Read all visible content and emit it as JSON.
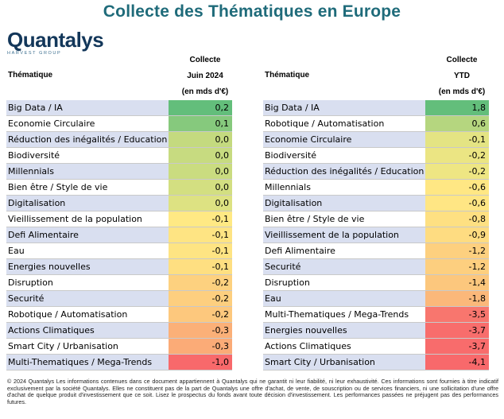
{
  "title": "Collecte des Thématiques en Europe",
  "logo": {
    "name": "Quantalys",
    "subtitle": "HARVEST GROUP"
  },
  "left": {
    "theme_header": "Thématique",
    "value_header_lines": [
      "Collecte",
      "Juin 2024",
      "(en mds d'€)"
    ],
    "rows": [
      {
        "name": "Big Data / IA",
        "value": "0,2",
        "color": "#63be7b"
      },
      {
        "name": "Economie Circulaire",
        "value": "0,1",
        "color": "#86c97d"
      },
      {
        "name": "Réduction des inégalités / Education",
        "value": "0,0",
        "color": "#c4da7f"
      },
      {
        "name": "Biodiversité",
        "value": "0,0",
        "color": "#c7db80"
      },
      {
        "name": "Millennials",
        "value": "0,0",
        "color": "#cadc80"
      },
      {
        "name": "Bien être / Style de vie",
        "value": "0,0",
        "color": "#d3df81"
      },
      {
        "name": "Digitalisation",
        "value": "0,0",
        "color": "#dde282"
      },
      {
        "name": "Vieillissement de la population",
        "value": "-0,1",
        "color": "#ffe984"
      },
      {
        "name": "Defi Alimentaire",
        "value": "-0,1",
        "color": "#fee483"
      },
      {
        "name": "Eau",
        "value": "-0,1",
        "color": "#fee483"
      },
      {
        "name": "Energies nouvelles",
        "value": "-0,1",
        "color": "#fedf81"
      },
      {
        "name": "Disruption",
        "value": "-0,2",
        "color": "#fdd17f"
      },
      {
        "name": "Securité",
        "value": "-0,2",
        "color": "#fdcf7f"
      },
      {
        "name": "Robotique / Automatisation",
        "value": "-0,2",
        "color": "#fdc87d"
      },
      {
        "name": "Actions Climatiques",
        "value": "-0,3",
        "color": "#fbb078"
      },
      {
        "name": "Smart City / Urbanisation",
        "value": "-0,3",
        "color": "#fbab77"
      },
      {
        "name": "Multi-Thematiques / Mega-Trends",
        "value": "-1,0",
        "color": "#f8696b"
      }
    ]
  },
  "right": {
    "theme_header": "Thématique",
    "value_header_lines": [
      "Collecte",
      "YTD",
      "(en mds d'€)"
    ],
    "rows": [
      {
        "name": "Big Data / IA",
        "value": "1,8",
        "color": "#63be7b"
      },
      {
        "name": "Robotique / Automatisation",
        "value": "0,6",
        "color": "#b5d67f"
      },
      {
        "name": "Economie Circulaire",
        "value": "-0,1",
        "color": "#e4e483"
      },
      {
        "name": "Biodiversité",
        "value": "-0,2",
        "color": "#ebe583"
      },
      {
        "name": "Réduction des inégalités / Education",
        "value": "-0,2",
        "color": "#eee683"
      },
      {
        "name": "Millennials",
        "value": "-0,6",
        "color": "#ffe784"
      },
      {
        "name": "Digitalisation",
        "value": "-0,6",
        "color": "#ffe684"
      },
      {
        "name": "Bien être / Style de vie",
        "value": "-0,8",
        "color": "#fee082"
      },
      {
        "name": "Vieillissement de la population",
        "value": "-0,9",
        "color": "#fedc81"
      },
      {
        "name": "Defi Alimentaire",
        "value": "-1,2",
        "color": "#fdd07f"
      },
      {
        "name": "Securité",
        "value": "-1,2",
        "color": "#fdcf7f"
      },
      {
        "name": "Disruption",
        "value": "-1,4",
        "color": "#fcc77d"
      },
      {
        "name": "Eau",
        "value": "-1,8",
        "color": "#fbb87a"
      },
      {
        "name": "Multi-Thematiques / Mega-Trends",
        "value": "-3,5",
        "color": "#f8766e"
      },
      {
        "name": "Energies nouvelles",
        "value": "-3,7",
        "color": "#f86d6c"
      },
      {
        "name": "Actions Climatiques",
        "value": "-3,7",
        "color": "#f86c6c"
      },
      {
        "name": "Smart City / Urbanisation",
        "value": "-4,1",
        "color": "#f8696b"
      }
    ]
  },
  "chart_data": [
    {
      "type": "table",
      "columns": [
        "Thématique",
        "Collecte Juin 2024 (en mds d'€)"
      ],
      "categories": [
        "Big Data / IA",
        "Economie Circulaire",
        "Réduction des inégalités / Education",
        "Biodiversité",
        "Millennials",
        "Bien être / Style de vie",
        "Digitalisation",
        "Vieillissement de la population",
        "Defi Alimentaire",
        "Eau",
        "Energies nouvelles",
        "Disruption",
        "Securité",
        "Robotique / Automatisation",
        "Actions Climatiques",
        "Smart City / Urbanisation",
        "Multi-Thematiques / Mega-Trends"
      ],
      "values": [
        0.2,
        0.1,
        0.0,
        0.0,
        0.0,
        0.0,
        0.0,
        -0.1,
        -0.1,
        -0.1,
        -0.1,
        -0.2,
        -0.2,
        -0.2,
        -0.3,
        -0.3,
        -1.0
      ]
    },
    {
      "type": "table",
      "columns": [
        "Thématique",
        "Collecte YTD (en mds d'€)"
      ],
      "categories": [
        "Big Data / IA",
        "Robotique / Automatisation",
        "Economie Circulaire",
        "Biodiversité",
        "Réduction des inégalités / Education",
        "Millennials",
        "Digitalisation",
        "Bien être / Style de vie",
        "Vieillissement de la population",
        "Defi Alimentaire",
        "Securité",
        "Disruption",
        "Eau",
        "Multi-Thematiques / Mega-Trends",
        "Energies nouvelles",
        "Actions Climatiques",
        "Smart City / Urbanisation"
      ],
      "values": [
        1.8,
        0.6,
        -0.1,
        -0.2,
        -0.2,
        -0.6,
        -0.6,
        -0.8,
        -0.9,
        -1.2,
        -1.2,
        -1.4,
        -1.8,
        -3.5,
        -3.7,
        -3.7,
        -4.1
      ]
    }
  ],
  "footer": "© 2024 Quantalys Les informations contenues dans ce document appartiennent à Quantalys qui ne garantit ni leur fiabilité, ni leur exhaustivité. Ces informations sont fournies à titre indicatif exclusivement par la société Quantalys. Elles ne constituent pas de la part de Quantalys une offre d'achat, de vente, de souscription ou de services financiers, ni une sollicitation d'une offre d'achat de quelque produit d'investissement que ce soit. Lisez le prospectus du fonds avant toute décision d'investissement. Les performances passées ne préjugent pas des performances futures."
}
